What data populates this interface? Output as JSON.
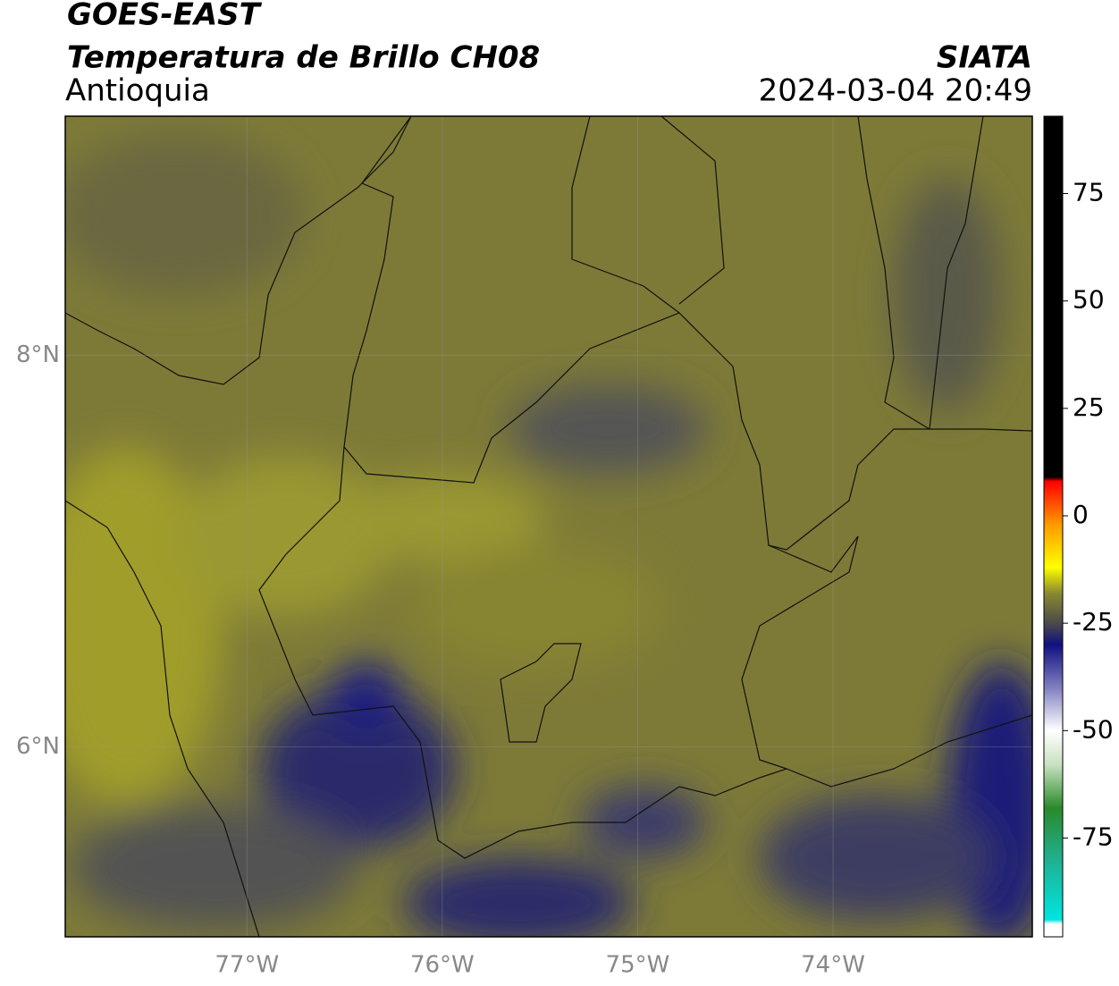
{
  "chart_data": {
    "type": "map",
    "title": "GOES-EAST",
    "subtitle": "Temperatura de Brillo CH08",
    "region": "Antioquia",
    "source": "SIATA",
    "datetime": "2024-03-04 20:49",
    "xlim": [
      -77.93,
      -72.98
    ],
    "ylim": [
      5.03,
      9.22
    ],
    "xticks": [
      {
        "value": -77,
        "label": "77°W"
      },
      {
        "value": -76,
        "label": "76°W"
      },
      {
        "value": -75,
        "label": "75°W"
      },
      {
        "value": -74,
        "label": "74°W"
      }
    ],
    "yticks": [
      {
        "value": 8,
        "label": "8°N"
      },
      {
        "value": 6,
        "label": "6°N"
      }
    ],
    "grid": true,
    "colorbar": {
      "lim": [
        -98,
        93
      ],
      "ticks": [
        75,
        50,
        25,
        0,
        -25,
        -50,
        -75
      ],
      "stops": [
        {
          "value": -98,
          "color": "#ffffff"
        },
        {
          "value": -95,
          "color": "#ffffff"
        },
        {
          "value": -94,
          "color": "#00e5e0"
        },
        {
          "value": -80,
          "color": "#20b090"
        },
        {
          "value": -68,
          "color": "#2a8a2a"
        },
        {
          "value": -58,
          "color": "#c8e0c0"
        },
        {
          "value": -50,
          "color": "#ffffff"
        },
        {
          "value": -40,
          "color": "#8080c0"
        },
        {
          "value": -30,
          "color": "#101080"
        },
        {
          "value": -25,
          "color": "#4a4a4a"
        },
        {
          "value": -18,
          "color": "#8a8a30"
        },
        {
          "value": -12,
          "color": "#ffff00"
        },
        {
          "value": -2,
          "color": "#ff9900"
        },
        {
          "value": 8,
          "color": "#ff0000"
        },
        {
          "value": 9,
          "color": "#000000"
        },
        {
          "value": 93,
          "color": "#000000"
        }
      ]
    }
  }
}
